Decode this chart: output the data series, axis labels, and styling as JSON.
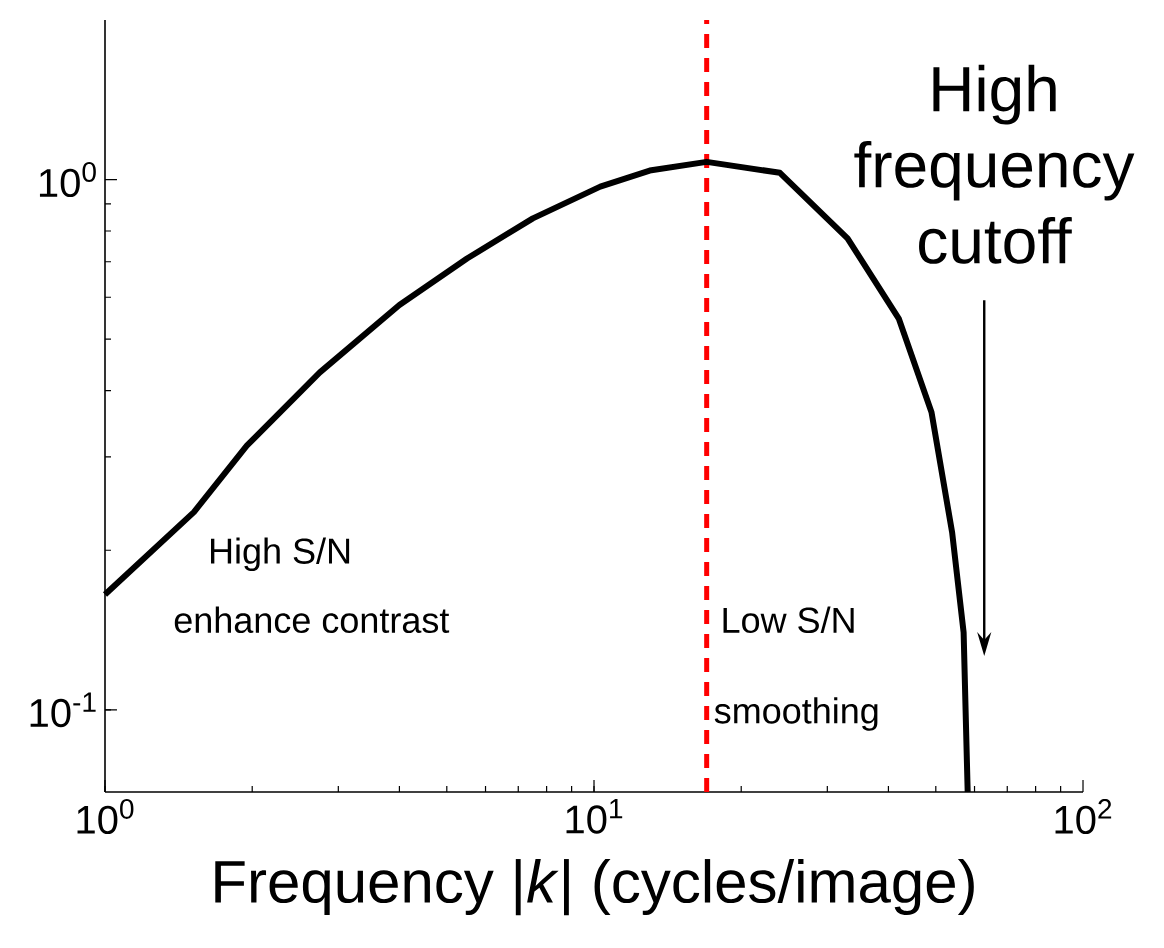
{
  "chart_data": {
    "type": "line",
    "xlabel": "Frequency |*k*| (cycles/image)",
    "x": [
      1,
      1.52,
      1.95,
      2.75,
      4.0,
      5.5,
      7.5,
      10.3,
      13,
      17,
      24,
      33,
      42,
      49,
      54,
      57,
      58.1
    ],
    "series": [
      {
        "color": "#000000",
        "values": [
          0.165,
          0.236,
          0.315,
          0.433,
          0.58,
          0.71,
          0.845,
          0.97,
          1.04,
          1.08,
          1.03,
          0.775,
          0.547,
          0.364,
          0.216,
          0.14,
          0.07
        ]
      }
    ],
    "log": "xy",
    "xlim": [
      1,
      100
    ],
    "ylim": [
      0.07,
      2
    ],
    "xticks": [
      {
        "value": 1,
        "label": "10$^{0}$"
      },
      {
        "value": 10,
        "label": "10$^{1}$"
      },
      {
        "value": 100,
        "label": "10$^{2}$"
      }
    ],
    "yticks": [
      {
        "value": 0.1,
        "label": "10$^{-1}$"
      },
      {
        "value": 1,
        "label": "10$^{0}$"
      }
    ],
    "ref_lines": [
      {
        "axis": "x",
        "value": 17,
        "color": "#ff0000",
        "line_style": "dashed"
      }
    ],
    "annotations": [
      "High S/N",
      "enhance contrast",
      "Low S/N",
      "smoothing",
      "High frequency cutoff"
    ],
    "line_style": "solid",
    "marker": "none"
  }
}
